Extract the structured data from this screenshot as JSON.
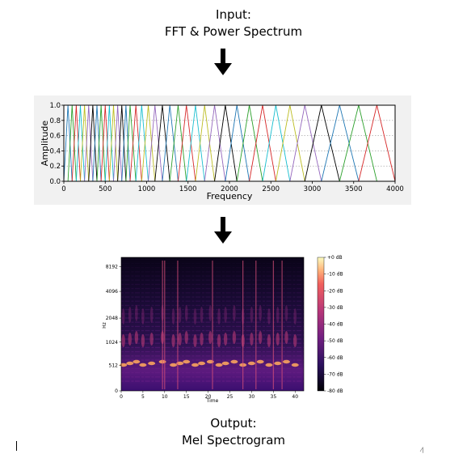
{
  "input": {
    "line1": "Input:",
    "line2": "FFT & Power Spectrum"
  },
  "output": {
    "line1": "Output:",
    "line2": "Mel Spectrogram"
  },
  "chart_data": [
    {
      "type": "line",
      "title": "",
      "xlabel": "Frequency",
      "ylabel": "Amplitude",
      "xlim": [
        0,
        4000
      ],
      "ylim": [
        0.0,
        1.0
      ],
      "x_ticks": [
        "0",
        "500",
        "1000",
        "1500",
        "2000",
        "2500",
        "3000",
        "3500",
        "4000"
      ],
      "y_ticks": [
        "0.0",
        "0.2",
        "0.4",
        "0.6",
        "0.8",
        "1.0"
      ],
      "grid": "dotted horizontal",
      "filter_centers": [
        50,
        100,
        150,
        200,
        250,
        300,
        350,
        400,
        450,
        500,
        550,
        600,
        650,
        700,
        750,
        800,
        870,
        940,
        1020,
        1100,
        1190,
        1280,
        1380,
        1480,
        1590,
        1700,
        1820,
        1950,
        2090,
        2240,
        2400,
        2560,
        2730,
        2910,
        3110,
        3330,
        3560,
        3780
      ],
      "filter_edges": [
        0,
        4000
      ],
      "colors": [
        "#1f77b4",
        "#2ca02c",
        "#d62728",
        "#17becf",
        "#bcbd22",
        "#9467bd",
        "#000000"
      ]
    },
    {
      "type": "heatmap",
      "title": "",
      "xlabel": "Time",
      "ylabel": "Hz",
      "x_ticks": [
        "0",
        "5",
        "10",
        "15",
        "20",
        "25",
        "30",
        "35",
        "40"
      ],
      "xlim": [
        0,
        42
      ],
      "y_ticks": [
        "0",
        "512",
        "1024",
        "2048",
        "4096",
        "8192"
      ],
      "colorbar_label_ticks": [
        "+0 dB",
        "-10 dB",
        "-20 dB",
        "-30 dB",
        "-40 dB",
        "-50 dB",
        "-60 dB",
        "-70 dB",
        "-80 dB"
      ],
      "colormap": "magma",
      "bright_band_times": [
        0.5,
        2,
        3.5,
        5,
        7,
        9.5,
        12,
        13.5,
        15,
        17,
        18.5,
        20.5,
        22.5,
        24,
        26,
        28,
        30,
        32,
        34,
        36,
        38,
        40
      ],
      "vertical_onsets": [
        9.5,
        10,
        13,
        21,
        28,
        31,
        35,
        37
      ]
    }
  ],
  "marks": {
    "corner": "⁄|"
  }
}
